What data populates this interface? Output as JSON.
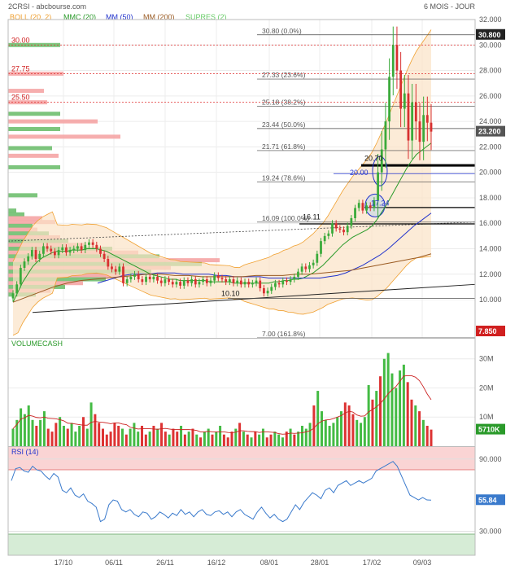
{
  "header": {
    "symbol_source": "2CRSI - abcbourse.com",
    "period": "6 MOIS - JOUR",
    "legend": [
      {
        "label": "BOLL (20, 2)",
        "color": "#f0a030"
      },
      {
        "label": "MMC (20)",
        "color": "#2a9a2a"
      },
      {
        "label": "MM (50)",
        "color": "#2233cc"
      },
      {
        "label": "MM (200)",
        "color": "#9a5a22"
      },
      {
        "label": "SUPRES (2)",
        "color": "#66cc66"
      }
    ]
  },
  "price_panel": {
    "y_ticks": [
      "32.000",
      "30.000",
      "28.000",
      "26.000",
      "24.000",
      "22.000",
      "20.000",
      "18.000",
      "16.000",
      "14.000",
      "12.000",
      "10.000"
    ],
    "last_price_label": "30.800",
    "current_price_label": "23.200",
    "low_price_label": "7.850",
    "resistance_labels": [
      "30.00",
      "27.75",
      "25.50"
    ],
    "fibonacci_labels": [
      "30.80  (0.0%)",
      "27.33  (23.6%)",
      "25.18  (38.2%)",
      "23.44  (50.0%)",
      "21.71  (61.8%)",
      "19.24  (78.6%)",
      "16.09  (100.0%)",
      "7.00  (161.8%)"
    ],
    "annotations": [
      "20.70",
      "20.00",
      "17.24",
      "16.11",
      "10.10"
    ]
  },
  "volume_panel": {
    "title": "VOLUMECASH",
    "y_ticks": [
      "30M",
      "20M",
      "10M"
    ],
    "last_value_label": "5710K"
  },
  "rsi_panel": {
    "title": "RSI (14)",
    "y_ticks": [
      "90.000",
      "30.000"
    ],
    "last_value_label": "55.84"
  },
  "x_axis_labels": [
    "17/10",
    "06/11",
    "26/11",
    "16/12",
    "08/01",
    "28/01",
    "17/02",
    "09/03"
  ],
  "chart_data": [
    {
      "type": "candlestick",
      "title": "2CRSI",
      "ylim": [
        7,
        32
      ],
      "x_labels": [
        "17/10",
        "06/11",
        "26/11",
        "16/12",
        "08/01",
        "28/01",
        "17/02",
        "09/03"
      ],
      "close": [
        10.5,
        11.2,
        12.5,
        13.0,
        13.4,
        13.9,
        13.2,
        13.6,
        14.2,
        14.0,
        13.8,
        13.5,
        13.9,
        14.1,
        13.7,
        13.9,
        14.0,
        14.2,
        13.9,
        14.3,
        14.5,
        14.3,
        14.0,
        13.6,
        13.2,
        12.6,
        12.4,
        12.2,
        12.6,
        11.3,
        11.6,
        11.8,
        12.0,
        11.6,
        11.4,
        11.8,
        11.6,
        11.8,
        11.5,
        11.3,
        11.6,
        11.4,
        11.2,
        11.4,
        11.1,
        11.5,
        11.3,
        11.6,
        11.2,
        11.4,
        11.6,
        11.3,
        11.5,
        11.9,
        11.7,
        11.6,
        11.4,
        11.6,
        11.3,
        11.5,
        11.2,
        11.4,
        11.2,
        11.3,
        11.5,
        10.9,
        10.5,
        10.7,
        11.0,
        11.3,
        11.2,
        11.5,
        11.4,
        11.6,
        11.8,
        12.2,
        12.6,
        12.4,
        12.7,
        12.9,
        13.6,
        14.6,
        15.0,
        15.2,
        16.0,
        15.6,
        15.5,
        15.3,
        15.8,
        16.4,
        17.2,
        17.6,
        17.0,
        17.4,
        17.2,
        17.8,
        20.0,
        21.8,
        24.0,
        27.5,
        30.0,
        28.0,
        25.0,
        26.2,
        22.5,
        25.5,
        24.0,
        22.4,
        24.5,
        23.9,
        23.2
      ],
      "series": [
        {
          "name": "MMC (20)",
          "values": [
            9.8,
            10.6,
            11.4,
            12.0,
            12.6,
            13.0,
            13.3,
            13.5,
            13.7,
            13.8,
            13.8,
            13.8,
            13.9,
            13.9,
            13.9,
            14.0,
            14.0,
            14.0,
            13.9,
            13.8,
            13.6,
            13.4,
            13.2,
            13.0,
            12.8,
            12.6,
            12.4,
            12.2,
            12.0,
            11.9,
            11.8,
            11.7,
            11.6,
            11.6,
            11.5,
            11.5,
            11.5,
            11.5,
            11.5,
            11.5,
            11.4,
            11.4,
            11.4,
            11.4,
            11.4,
            11.3,
            11.3,
            11.3,
            11.3,
            11.3,
            11.3,
            11.3,
            11.3,
            11.4,
            11.4,
            11.5,
            11.5,
            11.6,
            11.6,
            11.7,
            11.9,
            12.1,
            12.4,
            12.7,
            13.1,
            13.5,
            13.9,
            14.3,
            14.6,
            14.9,
            15.1,
            15.3,
            15.5,
            15.8,
            16.3,
            16.9,
            17.5,
            18.2,
            18.9,
            19.6,
            20.3,
            20.9,
            21.4,
            21.7,
            22.0,
            22.3
          ]
        },
        {
          "name": "MM (50)",
          "values": [
            11.3,
            11.5,
            11.7,
            11.9,
            12.0,
            12.0,
            12.0,
            12.1,
            12.1,
            12.1,
            12.0,
            12.0,
            12.0,
            12.0,
            11.9,
            11.9,
            11.8,
            11.8,
            11.8,
            11.8,
            11.7,
            11.7,
            11.7,
            11.7,
            11.7,
            11.7,
            11.7,
            11.8,
            11.9,
            12.1,
            12.4,
            12.7,
            13.1,
            13.5,
            14.0,
            14.6,
            15.2,
            15.8,
            16.3,
            16.8
          ]
        },
        {
          "name": "MM (200)",
          "values": [
            9.8,
            10.2,
            10.6,
            11.0,
            11.3,
            11.5,
            11.6,
            11.7,
            11.8,
            11.9,
            12.0,
            12.0,
            11.9,
            11.9,
            11.8,
            11.8,
            11.8,
            11.8,
            11.9,
            11.9,
            11.9,
            12.0,
            12.0,
            12.1,
            12.2,
            12.3,
            12.5,
            12.7,
            12.9,
            13.1,
            13.3,
            13.6
          ]
        }
      ],
      "support_resistance": [
        30.0,
        27.75,
        25.5
      ],
      "fibonacci_levels": [
        30.8,
        27.33,
        25.18,
        23.44,
        21.71,
        19.24,
        16.09,
        7.0
      ]
    },
    {
      "type": "bar",
      "title": "VOLUMECASH",
      "ylim": [
        0,
        33000000
      ],
      "values": [
        6,
        9,
        13,
        11,
        14,
        9,
        7,
        9,
        12,
        6,
        5,
        8,
        10,
        7,
        6,
        8,
        5,
        7,
        10,
        6,
        15,
        11,
        8,
        6,
        4,
        5,
        8,
        7,
        6,
        4,
        6,
        8,
        5,
        7,
        4,
        5,
        7,
        6,
        8,
        5,
        4,
        6,
        5,
        7,
        4,
        5,
        6,
        4,
        3,
        5,
        6,
        4,
        5,
        7,
        4,
        3,
        5,
        6,
        8,
        5,
        4,
        3,
        5,
        4,
        6,
        3,
        4,
        5,
        4,
        3,
        5,
        6,
        4,
        5,
        7,
        6,
        8,
        14,
        19,
        12,
        9,
        7,
        8,
        10,
        12,
        15,
        14,
        11,
        9,
        8,
        10,
        21,
        16,
        19,
        24,
        30,
        32,
        25,
        20,
        26,
        28,
        22,
        16,
        14,
        12,
        9,
        7,
        5.7
      ],
      "unit": "M"
    },
    {
      "type": "line",
      "title": "RSI (14)",
      "ylim": [
        10,
        100
      ],
      "values": [
        72,
        82,
        83,
        80,
        79,
        84,
        81,
        80,
        76,
        73,
        78,
        75,
        64,
        62,
        66,
        60,
        58,
        61,
        55,
        53,
        50,
        38,
        40,
        52,
        56,
        55,
        48,
        46,
        48,
        44,
        42,
        46,
        45,
        40,
        42,
        46,
        44,
        41,
        45,
        43,
        48,
        44,
        46,
        42,
        46,
        48,
        44,
        43,
        46,
        47,
        44,
        46,
        42,
        46,
        48,
        44,
        42,
        40,
        46,
        50,
        45,
        41,
        44,
        40,
        38,
        40,
        46,
        52,
        48,
        54,
        58,
        62,
        60,
        57,
        64,
        66,
        62,
        68,
        70,
        72,
        68,
        70,
        72,
        70,
        72,
        74,
        80,
        82,
        84,
        86,
        88,
        84,
        76,
        68,
        60,
        58,
        56,
        58,
        56,
        55.84
      ]
    }
  ]
}
